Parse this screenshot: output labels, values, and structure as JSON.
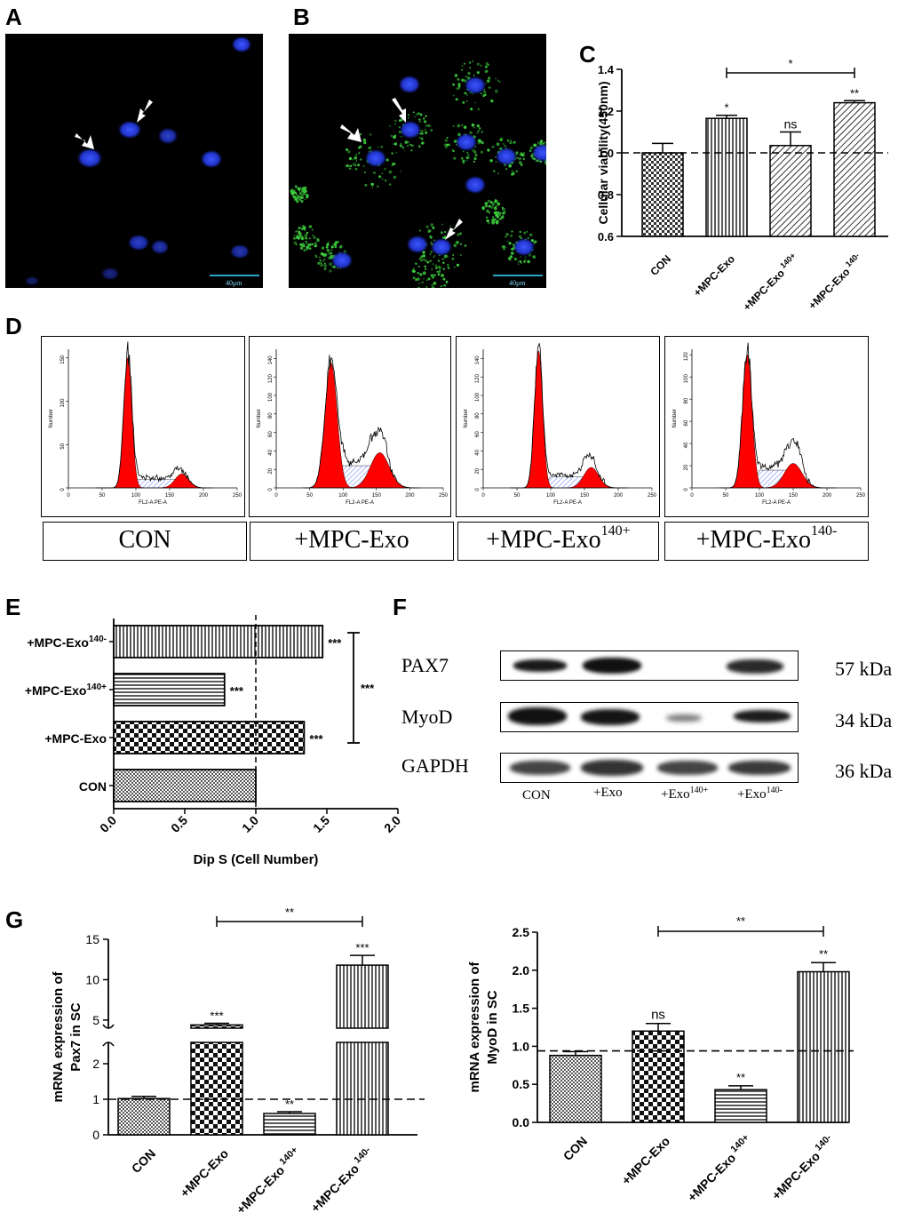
{
  "panels": {
    "A": "A",
    "B": "B",
    "C": "C",
    "D": "D",
    "E": "E",
    "F": "F",
    "G": "G"
  },
  "micro_a": {
    "scale_label": "40μm"
  },
  "micro_b": {
    "scale_label": "40μm"
  },
  "colors": {
    "nucleus": "#2a3fd8",
    "exo": "#3fd33f",
    "flow_red": "#ff0000",
    "hatch_blue": "#8da0ff",
    "scale": "#2aa3c7"
  },
  "chart_c": {
    "type": "bar",
    "ylabel": "Cellular viability(450nm)",
    "ylim": [
      0.6,
      1.4
    ],
    "yticks": [
      "0.6",
      "0.8",
      "1.0",
      "1.2",
      "1.4"
    ],
    "categories": [
      "CON",
      "+MPC-Exo",
      "+MPC-Exo 140+",
      "+MPC-Exo 140-"
    ],
    "cat_base": [
      "CON",
      "+MPC-Exo",
      "+MPC-Exo",
      "+MPC-Exo"
    ],
    "cat_sup": [
      "",
      "",
      "140+",
      "140-"
    ],
    "values": [
      1.0,
      1.165,
      1.035,
      1.24
    ],
    "errors": [
      0.045,
      0.015,
      0.065,
      0.01
    ],
    "sig": [
      "",
      "*",
      "ns",
      "**"
    ],
    "bracket": {
      "from": 1,
      "to": 3,
      "label": "*"
    },
    "ref_line": 1.0
  },
  "flow": {
    "xlabel": "FL2-A PE-A",
    "ylabel": "Number",
    "xticks": [
      "0",
      "50",
      "100",
      "150",
      "200",
      "250"
    ],
    "panels": [
      {
        "name": "CON",
        "yticks": [
          "0",
          "50",
          "100",
          "150"
        ],
        "ymax": 160
      },
      {
        "name": "+MPC-Exo",
        "yticks": [
          "0",
          "20",
          "40",
          "60",
          "80",
          "100",
          "120",
          "140"
        ],
        "ymax": 150
      },
      {
        "name": "+MPC-Exo140+",
        "yticks": [
          "0",
          "20",
          "40",
          "60",
          "80",
          "100",
          "120",
          "140"
        ],
        "ymax": 150
      },
      {
        "name": "+MPC-Exo140-",
        "yticks": [
          "0",
          "20",
          "40",
          "60",
          "80",
          "100",
          "120"
        ],
        "ymax": 125
      }
    ],
    "labels": [
      {
        "base": "CON",
        "sup": ""
      },
      {
        "base": "+MPC-Exo",
        "sup": ""
      },
      {
        "base": "+MPC-Exo",
        "sup": "140+"
      },
      {
        "base": "+MPC-Exo",
        "sup": "140-"
      }
    ]
  },
  "chart_e": {
    "type": "bar",
    "xlabel": "Dip S (Cell Number)",
    "xlim": [
      0,
      2
    ],
    "xticks": [
      "0.0",
      "0.5",
      "1.0",
      "1.5",
      "2.0"
    ],
    "categories": [
      "+MPC-Exo140-",
      "+MPC-Exo140+",
      "+MPC-Exo",
      "CON"
    ],
    "cat_base": [
      "+MPC-Exo",
      "+MPC-Exo",
      "+MPC-Exo",
      "CON"
    ],
    "cat_sup": [
      "140-",
      "140+",
      "",
      ""
    ],
    "values": [
      1.47,
      0.78,
      1.34,
      1.0
    ],
    "sig": [
      "***",
      "***",
      "***",
      ""
    ],
    "bracket": {
      "label": "***"
    },
    "ref_line": 1.0
  },
  "blot": {
    "rows": [
      {
        "label": "PAX7",
        "kda": "57 kDa"
      },
      {
        "label": "MyoD",
        "kda": "34 kDa"
      },
      {
        "label": "GAPDH",
        "kda": "36 kDa"
      }
    ],
    "lanes": [
      {
        "base": "CON",
        "sup": ""
      },
      {
        "base": "+Exo",
        "sup": ""
      },
      {
        "base": "+Exo",
        "sup": "140+"
      },
      {
        "base": "+Exo",
        "sup": "140-"
      }
    ]
  },
  "chart_g1": {
    "type": "bar",
    "ylabel_line1": "mRNA expression of",
    "ylabel_line2": "Pax7 in SC",
    "yticks_low": [
      "0",
      "1",
      "2"
    ],
    "yticks_high": [
      "5",
      "10",
      "15"
    ],
    "categories": [
      "CON",
      "+MPC-Exo",
      "+MPC-Exo 140+",
      "+MPC-Exo 140-"
    ],
    "cat_base": [
      "CON",
      "+MPC-Exo",
      "+MPC-Exo",
      "+MPC-Exo"
    ],
    "cat_sup": [
      "",
      "",
      "140+",
      "140-"
    ],
    "values": [
      1.02,
      4.4,
      0.6,
      11.8
    ],
    "errors": [
      0.06,
      0.2,
      0.05,
      1.2
    ],
    "sig": [
      "",
      "***",
      "**",
      "***"
    ],
    "bracket": {
      "from": 1,
      "to": 3,
      "label": "**"
    },
    "ref_line": 1.0
  },
  "chart_g2": {
    "type": "bar",
    "ylabel_line1": "mRNA expression of",
    "ylabel_line2": "MyoD in SC",
    "ylim": [
      0,
      2.5
    ],
    "yticks": [
      "0.0",
      "0.5",
      "1.0",
      "1.5",
      "2.0",
      "2.5"
    ],
    "categories": [
      "CON",
      "+MPC-Exo",
      "+MPC-Exo 140+",
      "+MPC-Exo 140-"
    ],
    "cat_base": [
      "CON",
      "+MPC-Exo",
      "+MPC-Exo",
      "+MPC-Exo"
    ],
    "cat_sup": [
      "",
      "",
      "140+",
      "140-"
    ],
    "values": [
      0.88,
      1.2,
      0.43,
      1.98
    ],
    "errors": [
      0.05,
      0.1,
      0.05,
      0.12
    ],
    "sig": [
      "",
      "ns",
      "**",
      "**"
    ],
    "bracket": {
      "from": 1,
      "to": 3,
      "label": "**"
    },
    "ref_line": 0.94
  }
}
